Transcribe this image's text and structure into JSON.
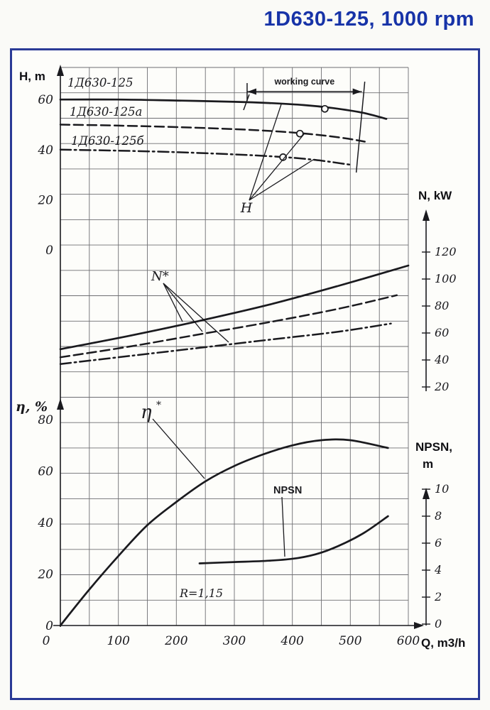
{
  "page": {
    "title": "1D630-125, 1000 rpm"
  },
  "chart_data": {
    "type": "line",
    "title": "1D630-125, 1000 rpm",
    "x_axis": {
      "label": "Q, m3/h",
      "min": 0,
      "max": 600,
      "grid_step": 50,
      "ticks": [
        0,
        100,
        200,
        300,
        400,
        500,
        600
      ]
    },
    "axes": {
      "head": {
        "label": "H, m",
        "side": "left",
        "ticks": [
          0,
          20,
          40,
          60
        ]
      },
      "power": {
        "label": "N, kW",
        "side": "right",
        "ticks": [
          20,
          40,
          60,
          80,
          100,
          120
        ]
      },
      "efficiency": {
        "label": "η, %",
        "side": "left",
        "ticks": [
          0,
          20,
          40,
          60,
          80
        ]
      },
      "npsn": {
        "label": "NPSN, m",
        "side": "right",
        "ticks": [
          0,
          2,
          4,
          6,
          8,
          10
        ]
      }
    },
    "series": [
      {
        "id": "h-1d630-125",
        "name": "1Д630-125",
        "axis": "head",
        "style": "solid",
        "points": [
          [
            0,
            60
          ],
          [
            100,
            60
          ],
          [
            200,
            59.6
          ],
          [
            300,
            59.1
          ],
          [
            360,
            58.6
          ],
          [
            420,
            57.8
          ],
          [
            470,
            56.6
          ],
          [
            520,
            54.8
          ],
          [
            562,
            52.3
          ]
        ],
        "marker": [
          456,
          56.3
        ]
      },
      {
        "id": "h-1d630-125a",
        "name": "1Д630-125а",
        "axis": "head",
        "style": "dashed",
        "points": [
          [
            0,
            50
          ],
          [
            100,
            49.6
          ],
          [
            200,
            49
          ],
          [
            300,
            48.2
          ],
          [
            380,
            47.2
          ],
          [
            440,
            46
          ],
          [
            490,
            44.6
          ],
          [
            525,
            43.2
          ]
        ],
        "marker": [
          413,
          46.4
        ]
      },
      {
        "id": "h-1d630-125b",
        "name": "1Д630-125б",
        "axis": "head",
        "style": "dashdot",
        "points": [
          [
            0,
            40
          ],
          [
            100,
            39.6
          ],
          [
            200,
            39
          ],
          [
            300,
            38.1
          ],
          [
            380,
            37.1
          ],
          [
            440,
            35.9
          ],
          [
            500,
            34
          ]
        ],
        "marker": [
          384,
          37
        ]
      },
      {
        "id": "n-1d630-125",
        "name": "N 1Д630-125",
        "axis": "power",
        "style": "solid",
        "points": [
          [
            0,
            48
          ],
          [
            120,
            58
          ],
          [
            240,
            69
          ],
          [
            360,
            81
          ],
          [
            480,
            95
          ],
          [
            600,
            110
          ]
        ]
      },
      {
        "id": "n-1d630-125a",
        "name": "N 1Д630-125а",
        "axis": "power",
        "style": "dashed",
        "points": [
          [
            0,
            42
          ],
          [
            120,
            50
          ],
          [
            240,
            59
          ],
          [
            360,
            68
          ],
          [
            480,
            78
          ],
          [
            580,
            88
          ]
        ]
      },
      {
        "id": "n-1d630-125b",
        "name": "N 1Д630-125б",
        "axis": "power",
        "style": "dashdot",
        "points": [
          [
            0,
            37
          ],
          [
            120,
            43
          ],
          [
            240,
            49
          ],
          [
            360,
            55
          ],
          [
            480,
            61
          ],
          [
            570,
            67
          ]
        ]
      },
      {
        "id": "eta",
        "name": "η",
        "axis": "efficiency",
        "style": "solid",
        "points": [
          [
            0,
            0
          ],
          [
            50,
            14
          ],
          [
            100,
            27
          ],
          [
            150,
            39
          ],
          [
            200,
            48
          ],
          [
            250,
            56
          ],
          [
            300,
            62
          ],
          [
            350,
            66.5
          ],
          [
            400,
            70
          ],
          [
            450,
            72
          ],
          [
            500,
            72
          ],
          [
            565,
            69
          ]
        ]
      },
      {
        "id": "npsn",
        "name": "NPSN",
        "axis": "npsn",
        "style": "solid",
        "points": [
          [
            240,
            4.5
          ],
          [
            300,
            4.6
          ],
          [
            360,
            4.7
          ],
          [
            410,
            4.9
          ],
          [
            450,
            5.3
          ],
          [
            490,
            6.0
          ],
          [
            525,
            6.8
          ],
          [
            565,
            8.0
          ]
        ]
      }
    ],
    "annotations": {
      "working_curve": {
        "label": "working curve",
        "from_q": 322,
        "to_q": 520
      },
      "h_label": "H",
      "n_label": "N*",
      "eta_label": "η*",
      "npsn_label": "NPSN",
      "r_label": "R=1,15"
    }
  }
}
